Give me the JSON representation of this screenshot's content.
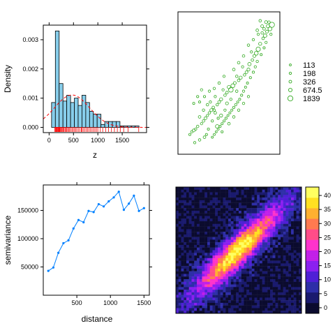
{
  "chart_data": [
    {
      "type": "bar",
      "name": "histogram",
      "xlabel": "z",
      "ylabel": "Density",
      "xlim": [
        -120,
        2000
      ],
      "ylim": [
        -0.00018,
        0.0035
      ],
      "xticks": [
        0,
        500,
        1000,
        1500
      ],
      "xtick_labels": [
        "0",
        "500",
        "1000",
        "1500"
      ],
      "yticks": [
        0,
        0.001,
        0.002,
        0.003
      ],
      "ytick_labels": [
        "0.000",
        "0.001",
        "0.002",
        "0.003"
      ],
      "bins": [
        {
          "x0": 50,
          "x1": 128,
          "value": 0.00085
        },
        {
          "x0": 128,
          "x1": 206,
          "value": 0.0033
        },
        {
          "x0": 206,
          "x1": 284,
          "value": 0.0015
        },
        {
          "x0": 284,
          "x1": 362,
          "value": 0.0009
        },
        {
          "x0": 362,
          "x1": 440,
          "value": 0.0011
        },
        {
          "x0": 440,
          "x1": 518,
          "value": 0.00085
        },
        {
          "x0": 518,
          "x1": 596,
          "value": 0.001
        },
        {
          "x0": 596,
          "x1": 674,
          "value": 0.00075
        },
        {
          "x0": 674,
          "x1": 752,
          "value": 0.0011
        },
        {
          "x0": 752,
          "x1": 830,
          "value": 0.00085
        },
        {
          "x0": 830,
          "x1": 908,
          "value": 0.00055
        },
        {
          "x0": 908,
          "x1": 986,
          "value": 0.00045
        },
        {
          "x0": 986,
          "x1": 1064,
          "value": 0.00045
        },
        {
          "x0": 1064,
          "x1": 1142,
          "value": 0.0001
        },
        {
          "x0": 1142,
          "x1": 1220,
          "value": 0.0002
        },
        {
          "x0": 1220,
          "x1": 1298,
          "value": 0.0002
        },
        {
          "x0": 1298,
          "x1": 1376,
          "value": 0.0002
        },
        {
          "x0": 1376,
          "x1": 1454,
          "value": 0.0002
        },
        {
          "x0": 1454,
          "x1": 1532,
          "value": 5e-05
        },
        {
          "x0": 1532,
          "x1": 1610,
          "value": 5e-05
        },
        {
          "x0": 1610,
          "x1": 1688,
          "value": 5e-05
        },
        {
          "x0": 1688,
          "x1": 1766,
          "value": 5e-05
        },
        {
          "x0": 1766,
          "x1": 1844,
          "value": 5e-05
        }
      ],
      "density_curve": {
        "mean": 470,
        "sd": 360
      },
      "rug": [
        113,
        128,
        140,
        152,
        165,
        178,
        190,
        198,
        205,
        215,
        225,
        240,
        255,
        270,
        290,
        305,
        326,
        340,
        360,
        380,
        400,
        420,
        445,
        470,
        495,
        520,
        545,
        570,
        600,
        630,
        660,
        674,
        700,
        730,
        760,
        790,
        820,
        850,
        880,
        910,
        940,
        970,
        1000,
        1050,
        1100,
        1160,
        1220,
        1280,
        1340,
        1400,
        1460,
        1530,
        1620,
        1839
      ],
      "colors": {
        "bar_fill": "#87ceeb",
        "curve": "#ff0000",
        "rug": "#ff0000"
      }
    },
    {
      "type": "scatter",
      "name": "bubble map",
      "legend_position": "right",
      "legend": [
        {
          "label": "113",
          "size": 113
        },
        {
          "label": "198",
          "size": 198
        },
        {
          "label": "326",
          "size": 326
        },
        {
          "label": "674.5",
          "size": 674.5
        },
        {
          "label": "1839",
          "size": 1839
        }
      ],
      "xlim": [
        0,
        100
      ],
      "ylim": [
        0,
        100
      ],
      "points": [
        [
          94,
          93,
          1839
        ],
        [
          92,
          90,
          900
        ],
        [
          90,
          92,
          600
        ],
        [
          89,
          88,
          400
        ],
        [
          87,
          85,
          700
        ],
        [
          85,
          83,
          300
        ],
        [
          84,
          87,
          250
        ],
        [
          82,
          79,
          500
        ],
        [
          80,
          75,
          1200
        ],
        [
          78,
          72,
          900
        ],
        [
          76,
          70,
          400
        ],
        [
          74,
          67,
          300
        ],
        [
          73,
          73,
          200
        ],
        [
          71,
          64,
          600
        ],
        [
          70,
          60,
          450
        ],
        [
          68,
          58,
          350
        ],
        [
          66,
          56,
          250
        ],
        [
          64,
          62,
          200
        ],
        [
          62,
          54,
          500
        ],
        [
          60,
          52,
          300
        ],
        [
          58,
          55,
          250
        ],
        [
          56,
          50,
          400
        ],
        [
          54,
          48,
          900
        ],
        [
          52,
          45,
          1400
        ],
        [
          50,
          47,
          600
        ],
        [
          48,
          43,
          300
        ],
        [
          46,
          41,
          250
        ],
        [
          44,
          45,
          200
        ],
        [
          42,
          38,
          500
        ],
        [
          40,
          36,
          350
        ],
        [
          38,
          34,
          250
        ],
        [
          36,
          40,
          200
        ],
        [
          34,
          32,
          300
        ],
        [
          32,
          30,
          450
        ],
        [
          30,
          28,
          250
        ],
        [
          28,
          26,
          200
        ],
        [
          26,
          24,
          350
        ],
        [
          24,
          22,
          250
        ],
        [
          22,
          20,
          200
        ],
        [
          20,
          25,
          300
        ],
        [
          18,
          18,
          250
        ],
        [
          16,
          16,
          200
        ],
        [
          14,
          15,
          400
        ],
        [
          12,
          14,
          200
        ],
        [
          10,
          12,
          150
        ],
        [
          88,
          80,
          200
        ],
        [
          86,
          76,
          180
        ],
        [
          83,
          71,
          160
        ],
        [
          79,
          66,
          220
        ],
        [
          77,
          62,
          200
        ],
        [
          75,
          58,
          190
        ],
        [
          72,
          54,
          170
        ],
        [
          69,
          50,
          160
        ],
        [
          67,
          47,
          150
        ],
        [
          65,
          44,
          200
        ],
        [
          63,
          41,
          180
        ],
        [
          61,
          38,
          160
        ],
        [
          59,
          36,
          150
        ],
        [
          57,
          34,
          200
        ],
        [
          55,
          32,
          180
        ],
        [
          53,
          30,
          160
        ],
        [
          51,
          28,
          150
        ],
        [
          49,
          26,
          140
        ],
        [
          47,
          24,
          180
        ],
        [
          45,
          22,
          160
        ],
        [
          43,
          20,
          150
        ],
        [
          41,
          18,
          140
        ],
        [
          39,
          16,
          130
        ],
        [
          37,
          14,
          120
        ],
        [
          35,
          12,
          130
        ],
        [
          33,
          10,
          120
        ],
        [
          45,
          55,
          200
        ],
        [
          40,
          50,
          250
        ],
        [
          35,
          46,
          220
        ],
        [
          30,
          44,
          200
        ],
        [
          25,
          40,
          180
        ],
        [
          20,
          36,
          170
        ],
        [
          55,
          60,
          300
        ],
        [
          60,
          65,
          280
        ],
        [
          65,
          70,
          260
        ],
        [
          70,
          78,
          240
        ],
        [
          75,
          82,
          220
        ],
        [
          80,
          86,
          200
        ],
        [
          25,
          10,
          300
        ],
        [
          20,
          8,
          250
        ],
        [
          15,
          6,
          200
        ],
        [
          38,
          18,
          700
        ],
        [
          42,
          26,
          500
        ],
        [
          48,
          35,
          400
        ],
        [
          36,
          28,
          300
        ],
        [
          28,
          34,
          260
        ],
        [
          24,
          30,
          240
        ],
        [
          22,
          45,
          200
        ],
        [
          18,
          40,
          180
        ],
        [
          14,
          35,
          160
        ],
        [
          50,
          20,
          300
        ],
        [
          55,
          25,
          260
        ],
        [
          60,
          30,
          240
        ],
        [
          65,
          35,
          220
        ],
        [
          70,
          40,
          200
        ],
        [
          58,
          44,
          250
        ],
        [
          52,
          38,
          230
        ],
        [
          46,
          30,
          210
        ],
        [
          33,
          22,
          190
        ],
        [
          29,
          16,
          170
        ],
        [
          27,
          12,
          160
        ],
        [
          31,
          36,
          220
        ],
        [
          35,
          30,
          200
        ],
        [
          39,
          24,
          180
        ],
        [
          43,
          14,
          160
        ],
        [
          86,
          90,
          300
        ],
        [
          91,
          95,
          250
        ],
        [
          93,
          86,
          220
        ],
        [
          88,
          95,
          400
        ],
        [
          84,
          92,
          350
        ],
        [
          79,
          89,
          300
        ],
        [
          82,
          96,
          260
        ]
      ]
    },
    {
      "type": "line",
      "name": "variogram",
      "xlabel": "distance",
      "ylabel": "semivariance",
      "xlim": [
        0,
        1580
      ],
      "ylim": [
        0,
        195000
      ],
      "xticks": [
        500,
        1000,
        1500
      ],
      "xtick_labels": [
        "500",
        "1000",
        "1500"
      ],
      "yticks": [
        50000,
        100000,
        150000
      ],
      "ytick_labels": [
        "50000",
        "100000",
        "150000"
      ],
      "x": [
        75,
        150,
        225,
        300,
        375,
        450,
        525,
        600,
        675,
        750,
        825,
        900,
        975,
        1050,
        1125,
        1200,
        1275,
        1350,
        1425,
        1500
      ],
      "y": [
        43000,
        49000,
        75000,
        92000,
        97000,
        118000,
        133000,
        129000,
        149000,
        147000,
        161000,
        157000,
        166000,
        173000,
        183000,
        151000,
        162000,
        176000,
        149000,
        154000
      ],
      "colors": {
        "line": "#0080ff"
      }
    },
    {
      "type": "heatmap",
      "name": "density image",
      "grid_size": 48,
      "colorbar_ticks": [
        0,
        5,
        10,
        15,
        20,
        25,
        30,
        35,
        40
      ],
      "colorbar_labels": [
        "0",
        "5",
        "10",
        "15",
        "20",
        "25",
        "30",
        "35",
        "40"
      ],
      "range": [
        -2,
        43
      ],
      "colormap": [
        "#0b0b2e",
        "#1a1a6e",
        "#2e2ea8",
        "#4f1fd6",
        "#8a1ff0",
        "#c21fe8",
        "#ff33cc",
        "#ff4d88",
        "#ff7a50",
        "#ffb030",
        "#ffe020",
        "#ffff60"
      ]
    }
  ]
}
